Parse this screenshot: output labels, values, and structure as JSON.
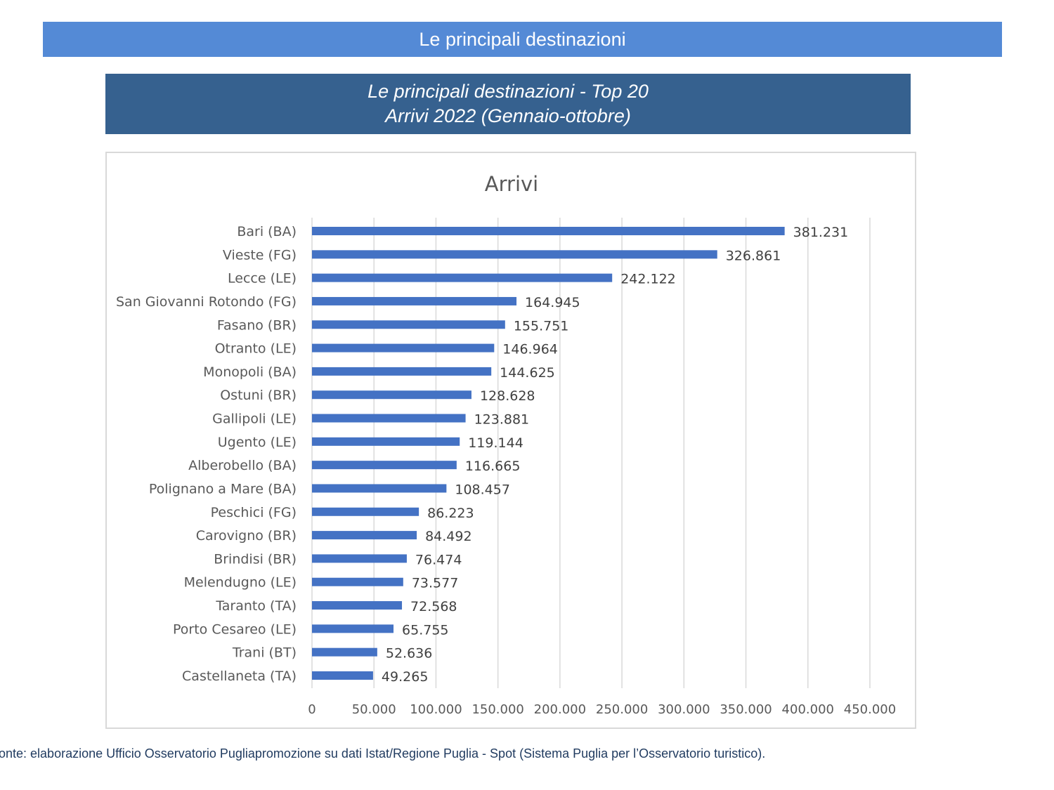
{
  "header": {
    "title": "Le principali destinazioni"
  },
  "subheader": {
    "line1": "Le principali destinazioni - Top 20",
    "line2": "Arrivi 2022 (Gennaio-ottobre)"
  },
  "chart_data": {
    "type": "bar",
    "orientation": "horizontal",
    "title": "Arrivi",
    "xlabel": "",
    "ylabel": "",
    "xlim": [
      0,
      450000
    ],
    "x_ticks": [
      0,
      50000,
      100000,
      150000,
      200000,
      250000,
      300000,
      350000,
      400000,
      450000
    ],
    "x_tick_labels": [
      "0",
      "50.000",
      "100.000",
      "150.000",
      "200.000",
      "250.000",
      "300.000",
      "350.000",
      "400.000",
      "450.000"
    ],
    "grid": "vertical",
    "legend": "none",
    "bar_color": "#4472c4",
    "categories": [
      "Bari (BA)",
      "Vieste (FG)",
      "Lecce (LE)",
      "San Giovanni Rotondo (FG)",
      "Fasano (BR)",
      "Otranto (LE)",
      "Monopoli (BA)",
      "Ostuni (BR)",
      "Gallipoli (LE)",
      "Ugento (LE)",
      "Alberobello (BA)",
      "Polignano a Mare (BA)",
      "Peschici (FG)",
      "Carovigno (BR)",
      "Brindisi (BR)",
      "Melendugno (LE)",
      "Taranto (TA)",
      "Porto Cesareo (LE)",
      "Trani (BT)",
      "Castellaneta (TA)"
    ],
    "values": [
      381231,
      326861,
      242122,
      164945,
      155751,
      146964,
      144625,
      128628,
      123881,
      119144,
      116665,
      108457,
      86223,
      84492,
      76474,
      73577,
      72568,
      65755,
      52636,
      49265
    ],
    "value_labels": [
      "381.231",
      "326.861",
      "242.122",
      "164.945",
      "155.751",
      "146.964",
      "144.625",
      "128.628",
      "123.881",
      "119.144",
      "116.665",
      "108.457",
      "86.223",
      "84.492",
      "76.474",
      "73.577",
      "72.568",
      "65.755",
      "52.636",
      "49.265"
    ]
  },
  "footer": {
    "source": "onte: elaborazione Ufficio Osservatorio Pugliapromozione su dati Istat/Regione Puglia - Spot (Sistema Puglia per l’Osservatorio turistico)."
  }
}
